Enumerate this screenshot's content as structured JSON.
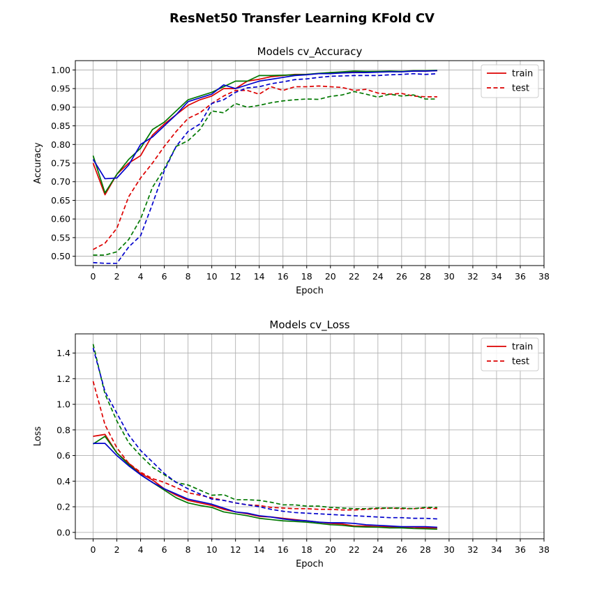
{
  "figure": {
    "suptitle": "ResNet50 Transfer Learning KFold CV"
  },
  "colors": {
    "red": "#dd0000",
    "green": "#007800",
    "blue": "#0000cc"
  },
  "chart_data": [
    {
      "type": "line",
      "title": "Models cv_Accuracy",
      "xlabel": "Epoch",
      "ylabel": "Accuracy",
      "xlim": [
        -1.5,
        38
      ],
      "ylim": [
        0.475,
        1.025
      ],
      "xticks": [
        0,
        2,
        4,
        6,
        8,
        10,
        12,
        14,
        16,
        18,
        20,
        22,
        24,
        26,
        28,
        30,
        32,
        34,
        36,
        38
      ],
      "yticks": [
        0.5,
        0.55,
        0.6,
        0.65,
        0.7,
        0.75,
        0.8,
        0.85,
        0.9,
        0.95,
        1.0
      ],
      "yticklabels": [
        "0.50",
        "0.55",
        "0.60",
        "0.65",
        "0.70",
        "0.75",
        "0.80",
        "0.85",
        "0.90",
        "0.95",
        "1.00"
      ],
      "grid": true,
      "legend": {
        "position": "top-right",
        "entries": [
          {
            "label": "train",
            "style": "solid",
            "color": "#dd0000"
          },
          {
            "label": "test",
            "style": "dashed",
            "color": "#dd0000"
          }
        ]
      },
      "x": [
        0,
        1,
        2,
        3,
        4,
        5,
        6,
        7,
        8,
        9,
        10,
        11,
        12,
        13,
        14,
        15,
        16,
        17,
        18,
        19,
        20,
        21,
        22,
        23,
        24,
        25,
        26,
        27,
        28,
        29
      ],
      "series": [
        {
          "color": "#dd0000",
          "style": "solid",
          "values": [
            0.75,
            0.665,
            0.72,
            0.75,
            0.77,
            0.825,
            0.855,
            0.88,
            0.905,
            0.92,
            0.93,
            0.95,
            0.95,
            0.97,
            0.975,
            0.982,
            0.985,
            0.988,
            0.988,
            0.99,
            0.993,
            0.993,
            0.995,
            0.995,
            0.996,
            0.996,
            0.996,
            0.997,
            0.997,
            0.998
          ]
        },
        {
          "color": "#007800",
          "style": "solid",
          "values": [
            0.77,
            0.67,
            0.72,
            0.76,
            0.79,
            0.84,
            0.86,
            0.89,
            0.92,
            0.93,
            0.94,
            0.955,
            0.97,
            0.97,
            0.985,
            0.985,
            0.986,
            0.987,
            0.988,
            0.991,
            0.993,
            0.995,
            0.997,
            0.996,
            0.996,
            0.997,
            0.996,
            0.998,
            0.998,
            0.999
          ]
        },
        {
          "color": "#0000cc",
          "style": "solid",
          "values": [
            0.76,
            0.708,
            0.71,
            0.745,
            0.8,
            0.82,
            0.85,
            0.88,
            0.915,
            0.925,
            0.935,
            0.96,
            0.95,
            0.96,
            0.97,
            0.975,
            0.98,
            0.985,
            0.987,
            0.99,
            0.99,
            0.992,
            0.993,
            0.993,
            0.994,
            0.995,
            0.995,
            0.997,
            0.997,
            0.998
          ]
        },
        {
          "color": "#dd0000",
          "style": "dashed",
          "values": [
            0.518,
            0.535,
            0.575,
            0.66,
            0.71,
            0.75,
            0.795,
            0.835,
            0.87,
            0.885,
            0.91,
            0.93,
            0.945,
            0.945,
            0.935,
            0.955,
            0.945,
            0.955,
            0.955,
            0.957,
            0.955,
            0.953,
            0.945,
            0.948,
            0.938,
            0.935,
            0.937,
            0.93,
            0.928,
            0.928
          ]
        },
        {
          "color": "#007800",
          "style": "dashed",
          "values": [
            0.503,
            0.503,
            0.512,
            0.545,
            0.6,
            0.685,
            0.735,
            0.795,
            0.81,
            0.84,
            0.89,
            0.885,
            0.91,
            0.9,
            0.905,
            0.912,
            0.917,
            0.92,
            0.922,
            0.921,
            0.929,
            0.933,
            0.942,
            0.935,
            0.927,
            0.935,
            0.93,
            0.933,
            0.922,
            0.922
          ]
        },
        {
          "color": "#0000cc",
          "style": "dashed",
          "values": [
            0.483,
            0.481,
            0.481,
            0.525,
            0.555,
            0.64,
            0.73,
            0.795,
            0.835,
            0.855,
            0.91,
            0.92,
            0.94,
            0.952,
            0.955,
            0.963,
            0.968,
            0.974,
            0.976,
            0.98,
            0.983,
            0.984,
            0.985,
            0.985,
            0.985,
            0.987,
            0.988,
            0.99,
            0.988,
            0.99
          ]
        }
      ]
    },
    {
      "type": "line",
      "title": "Models cv_Loss",
      "xlabel": "Epoch",
      "ylabel": "Loss",
      "xlim": [
        -1.5,
        38
      ],
      "ylim": [
        -0.05,
        1.55
      ],
      "xticks": [
        0,
        2,
        4,
        6,
        8,
        10,
        12,
        14,
        16,
        18,
        20,
        22,
        24,
        26,
        28,
        30,
        32,
        34,
        36,
        38
      ],
      "yticks": [
        0.0,
        0.2,
        0.4,
        0.6,
        0.8,
        1.0,
        1.2,
        1.4
      ],
      "yticklabels": [
        "0.0",
        "0.2",
        "0.4",
        "0.6",
        "0.8",
        "1.0",
        "1.2",
        "1.4"
      ],
      "grid": true,
      "legend": {
        "position": "top-right",
        "entries": [
          {
            "label": "train",
            "style": "solid",
            "color": "#dd0000"
          },
          {
            "label": "test",
            "style": "dashed",
            "color": "#dd0000"
          }
        ]
      },
      "x": [
        0,
        1,
        2,
        3,
        4,
        5,
        6,
        7,
        8,
        9,
        10,
        11,
        12,
        13,
        14,
        15,
        16,
        17,
        18,
        19,
        20,
        21,
        22,
        23,
        24,
        25,
        26,
        27,
        28,
        29
      ],
      "series": [
        {
          "color": "#dd0000",
          "style": "solid",
          "values": [
            0.75,
            0.765,
            0.62,
            0.54,
            0.46,
            0.41,
            0.34,
            0.29,
            0.25,
            0.23,
            0.21,
            0.18,
            0.16,
            0.145,
            0.125,
            0.12,
            0.11,
            0.1,
            0.09,
            0.08,
            0.07,
            0.065,
            0.05,
            0.05,
            0.045,
            0.045,
            0.04,
            0.04,
            0.035,
            0.035
          ]
        },
        {
          "color": "#007800",
          "style": "solid",
          "values": [
            0.69,
            0.75,
            0.62,
            0.53,
            0.45,
            0.39,
            0.33,
            0.27,
            0.23,
            0.21,
            0.195,
            0.16,
            0.145,
            0.13,
            0.11,
            0.1,
            0.09,
            0.085,
            0.08,
            0.07,
            0.06,
            0.055,
            0.045,
            0.042,
            0.04,
            0.035,
            0.035,
            0.03,
            0.028,
            0.025
          ]
        },
        {
          "color": "#0000cc",
          "style": "solid",
          "values": [
            0.695,
            0.695,
            0.6,
            0.52,
            0.45,
            0.39,
            0.34,
            0.3,
            0.26,
            0.24,
            0.22,
            0.19,
            0.16,
            0.15,
            0.13,
            0.12,
            0.105,
            0.095,
            0.09,
            0.08,
            0.075,
            0.075,
            0.07,
            0.06,
            0.055,
            0.05,
            0.045,
            0.045,
            0.045,
            0.04
          ]
        },
        {
          "color": "#dd0000",
          "style": "dashed",
          "values": [
            1.18,
            0.84,
            0.66,
            0.54,
            0.47,
            0.42,
            0.39,
            0.35,
            0.31,
            0.29,
            0.27,
            0.25,
            0.23,
            0.215,
            0.21,
            0.195,
            0.19,
            0.185,
            0.185,
            0.18,
            0.18,
            0.175,
            0.175,
            0.18,
            0.185,
            0.19,
            0.185,
            0.185,
            0.19,
            0.185
          ]
        },
        {
          "color": "#007800",
          "style": "dashed",
          "values": [
            1.47,
            1.08,
            0.87,
            0.7,
            0.6,
            0.51,
            0.45,
            0.39,
            0.37,
            0.33,
            0.29,
            0.295,
            0.255,
            0.255,
            0.25,
            0.235,
            0.215,
            0.215,
            0.205,
            0.205,
            0.195,
            0.19,
            0.185,
            0.185,
            0.19,
            0.19,
            0.19,
            0.185,
            0.195,
            0.195
          ]
        },
        {
          "color": "#0000cc",
          "style": "dashed",
          "values": [
            1.44,
            1.1,
            0.93,
            0.76,
            0.64,
            0.55,
            0.46,
            0.39,
            0.34,
            0.3,
            0.26,
            0.25,
            0.23,
            0.215,
            0.2,
            0.18,
            0.165,
            0.155,
            0.15,
            0.145,
            0.14,
            0.135,
            0.13,
            0.125,
            0.12,
            0.115,
            0.115,
            0.11,
            0.11,
            0.105
          ]
        }
      ]
    }
  ]
}
